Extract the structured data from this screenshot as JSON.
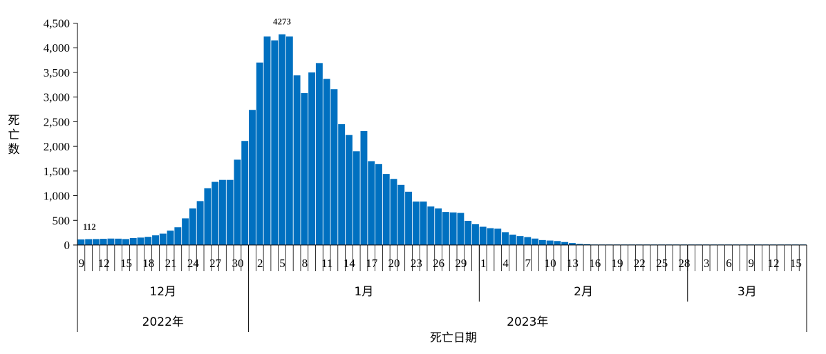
{
  "chart_data": {
    "type": "bar",
    "ylabel": "死亡数",
    "xlabel": "死亡日期",
    "ylim": [
      0,
      4500
    ],
    "ytick_values": [
      0,
      500,
      1000,
      1500,
      2000,
      2500,
      3000,
      3500,
      4000,
      4500
    ],
    "ytick_labels": [
      "0",
      "500",
      "1,000",
      "1,500",
      "2,000",
      "2,500",
      "3,000",
      "3,500",
      "4,000",
      "4,500"
    ],
    "bar_color": "#0070C0",
    "x": [
      "2022-12-09",
      "2022-12-10",
      "2022-12-11",
      "2022-12-12",
      "2022-12-13",
      "2022-12-14",
      "2022-12-15",
      "2022-12-16",
      "2022-12-17",
      "2022-12-18",
      "2022-12-19",
      "2022-12-20",
      "2022-12-21",
      "2022-12-22",
      "2022-12-23",
      "2022-12-24",
      "2022-12-25",
      "2022-12-26",
      "2022-12-27",
      "2022-12-28",
      "2022-12-29",
      "2022-12-30",
      "2022-12-31",
      "2023-01-01",
      "2023-01-02",
      "2023-01-03",
      "2023-01-04",
      "2023-01-05",
      "2023-01-06",
      "2023-01-07",
      "2023-01-08",
      "2023-01-09",
      "2023-01-10",
      "2023-01-11",
      "2023-01-12",
      "2023-01-13",
      "2023-01-14",
      "2023-01-15",
      "2023-01-16",
      "2023-01-17",
      "2023-01-18",
      "2023-01-19",
      "2023-01-20",
      "2023-01-21",
      "2023-01-22",
      "2023-01-23",
      "2023-01-24",
      "2023-01-25",
      "2023-01-26",
      "2023-01-27",
      "2023-01-28",
      "2023-01-29",
      "2023-01-30",
      "2023-01-31",
      "2023-02-01",
      "2023-02-02",
      "2023-02-03",
      "2023-02-04",
      "2023-02-05",
      "2023-02-06",
      "2023-02-07",
      "2023-02-08",
      "2023-02-09",
      "2023-02-10",
      "2023-02-11",
      "2023-02-12",
      "2023-02-13",
      "2023-02-14",
      "2023-02-15",
      "2023-02-16",
      "2023-02-17",
      "2023-02-18",
      "2023-02-19",
      "2023-02-20",
      "2023-02-21",
      "2023-02-22",
      "2023-02-23",
      "2023-02-24",
      "2023-02-25",
      "2023-02-26",
      "2023-02-27",
      "2023-02-28",
      "2023-03-01",
      "2023-03-02",
      "2023-03-03",
      "2023-03-04",
      "2023-03-05",
      "2023-03-06",
      "2023-03-07",
      "2023-03-08",
      "2023-03-09",
      "2023-03-10",
      "2023-03-11",
      "2023-03-12",
      "2023-03-13",
      "2023-03-14",
      "2023-03-15",
      "2023-03-16"
    ],
    "values": [
      112,
      118,
      120,
      125,
      130,
      128,
      120,
      140,
      150,
      165,
      195,
      230,
      290,
      360,
      540,
      740,
      890,
      1150,
      1280,
      1320,
      1320,
      1730,
      2110,
      2740,
      3700,
      4230,
      4150,
      4273,
      4230,
      3440,
      3080,
      3500,
      3690,
      3370,
      3160,
      2450,
      2230,
      1900,
      2310,
      1700,
      1640,
      1440,
      1340,
      1220,
      1080,
      880,
      880,
      780,
      740,
      670,
      660,
      650,
      490,
      420,
      370,
      340,
      330,
      260,
      210,
      180,
      160,
      130,
      100,
      90,
      80,
      60,
      40,
      20,
      15,
      10,
      10,
      10,
      10,
      10,
      10,
      10,
      10,
      10,
      10,
      10,
      10,
      10,
      10,
      10,
      10,
      10,
      10,
      10,
      10,
      10,
      10,
      10,
      10,
      10,
      10,
      10,
      10,
      10
    ],
    "x_tick_labels": [
      "9",
      "12",
      "15",
      "18",
      "21",
      "24",
      "27",
      "30",
      "2",
      "5",
      "8",
      "11",
      "14",
      "17",
      "20",
      "23",
      "26",
      "29",
      "1",
      "4",
      "7",
      "10",
      "13",
      "16",
      "19",
      "22",
      "25",
      "28",
      "3",
      "6",
      "9",
      "12",
      "15"
    ],
    "months": [
      "12月",
      "1月",
      "2月",
      "3月"
    ],
    "years": [
      "2022年",
      "2023年"
    ],
    "annotations": [
      {
        "date": "2022-12-09",
        "text": "112"
      },
      {
        "date": "2023-01-05",
        "text": "4273"
      }
    ]
  }
}
